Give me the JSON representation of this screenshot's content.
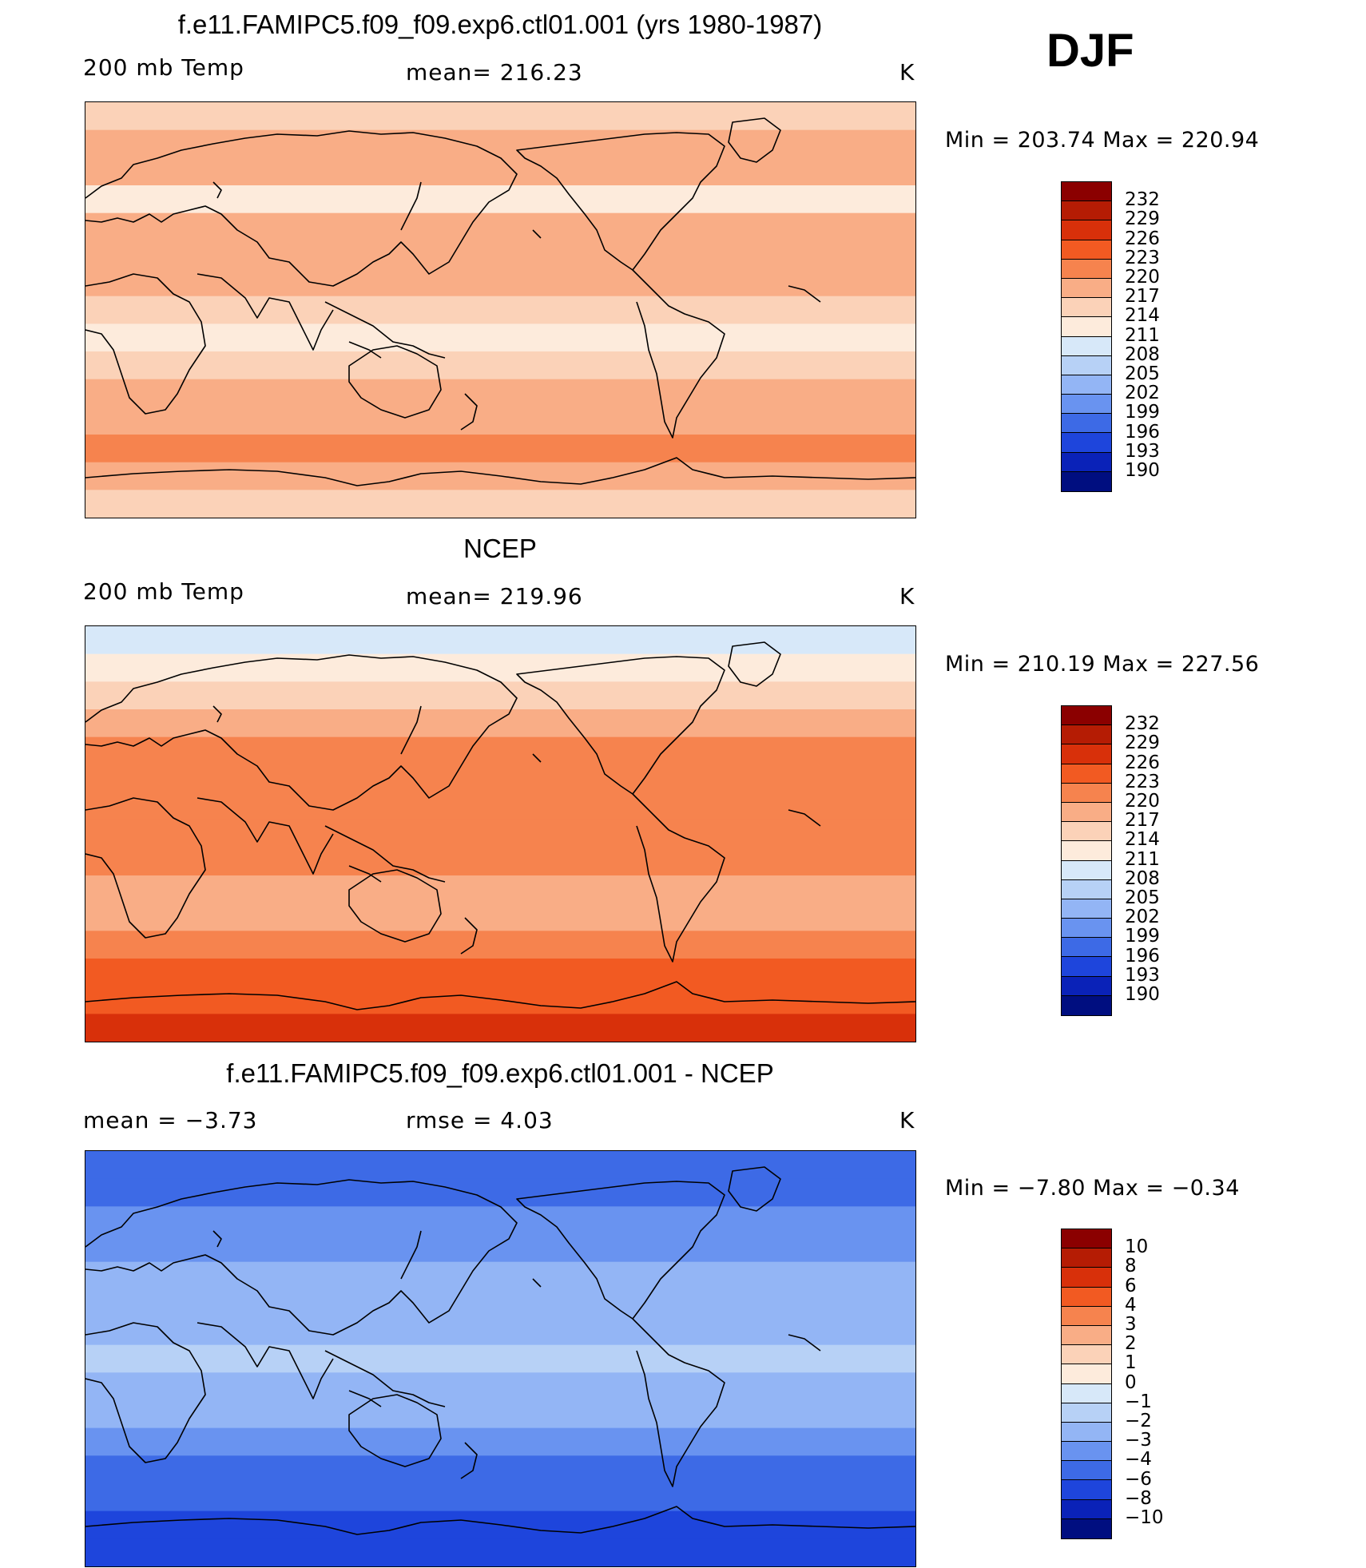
{
  "season": "DJF",
  "panels": [
    {
      "title": "f.e11.FAMIPC5.f09_f09.exp6.ctl01.001 (yrs 1980-1987)",
      "left_label": "200 mb Temp",
      "center_label": "mean=  216.23",
      "unit": "K",
      "minmax": "Min  =  203.74  Max  =  220.94"
    },
    {
      "title": "NCEP",
      "left_label": "200 mb Temp",
      "center_label": "mean=  219.96",
      "unit": "K",
      "minmax": "Min  =  210.19  Max  =  227.56"
    },
    {
      "title": "f.e11.FAMIPC5.f09_f09.exp6.ctl01.001 - NCEP",
      "left_label": "mean  =     −3.73",
      "center_label": "rmse  =      4.03",
      "unit": "K",
      "minmax": "Min  =    −7.80  Max  =    −0.34"
    }
  ],
  "chart_data": [
    {
      "type": "heatmap",
      "title": "f.e11.FAMIPC5.f09_f09.exp6.ctl01.001 (yrs 1980-1987)",
      "variable": "200 mb Temp",
      "unit": "K",
      "mean": 216.23,
      "min": 203.74,
      "max": 220.94,
      "colorbar_levels": [
        "232",
        "229",
        "226",
        "223",
        "220",
        "217",
        "214",
        "211",
        "208",
        "205",
        "202",
        "199",
        "196",
        "193",
        "190"
      ],
      "colorbar_colors": [
        "#8b0000",
        "#b51c04",
        "#d8300a",
        "#f25a22",
        "#f6834e",
        "#f9ad86",
        "#fbd2b8",
        "#fdebdc",
        "#d7e8f9",
        "#b7d1f6",
        "#93b5f5",
        "#6993f0",
        "#3d6ae6",
        "#1e45dc",
        "#0a22b8",
        "#000e80"
      ],
      "band_level_index": [
        6,
        5,
        5,
        7,
        5,
        5,
        5,
        6,
        7,
        6,
        5,
        5,
        4,
        5,
        6
      ]
    },
    {
      "type": "heatmap",
      "title": "NCEP",
      "variable": "200 mb Temp",
      "unit": "K",
      "mean": 219.96,
      "min": 210.19,
      "max": 227.56,
      "colorbar_levels": [
        "232",
        "229",
        "226",
        "223",
        "220",
        "217",
        "214",
        "211",
        "208",
        "205",
        "202",
        "199",
        "196",
        "193",
        "190"
      ],
      "colorbar_colors": [
        "#8b0000",
        "#b51c04",
        "#d8300a",
        "#f25a22",
        "#f6834e",
        "#f9ad86",
        "#fbd2b8",
        "#fdebdc",
        "#d7e8f9",
        "#b7d1f6",
        "#93b5f5",
        "#6993f0",
        "#3d6ae6",
        "#1e45dc",
        "#0a22b8",
        "#000e80"
      ],
      "band_level_index": [
        8,
        7,
        6,
        5,
        4,
        4,
        4,
        4,
        4,
        5,
        5,
        4,
        3,
        3,
        2
      ]
    },
    {
      "type": "heatmap",
      "title": "f.e11.FAMIPC5.f09_f09.exp6.ctl01.001 - NCEP",
      "unit": "K",
      "mean": -3.73,
      "rmse": 4.03,
      "min": -7.8,
      "max": -0.34,
      "colorbar_levels": [
        "10",
        "8",
        "6",
        "4",
        "3",
        "2",
        "1",
        "0",
        "−1",
        "−2",
        "−3",
        "−4",
        "−6",
        "−8",
        "−10"
      ],
      "colorbar_colors": [
        "#8b0000",
        "#b51c04",
        "#d8300a",
        "#f25a22",
        "#f6834e",
        "#f9ad86",
        "#fbd2b8",
        "#fdebdc",
        "#d7e8f9",
        "#b7d1f6",
        "#93b5f5",
        "#6993f0",
        "#3d6ae6",
        "#1e45dc",
        "#0a22b8",
        "#000e80"
      ],
      "band_level_index": [
        12,
        12,
        11,
        11,
        10,
        10,
        10,
        9,
        10,
        10,
        11,
        12,
        12,
        13,
        13
      ]
    }
  ]
}
